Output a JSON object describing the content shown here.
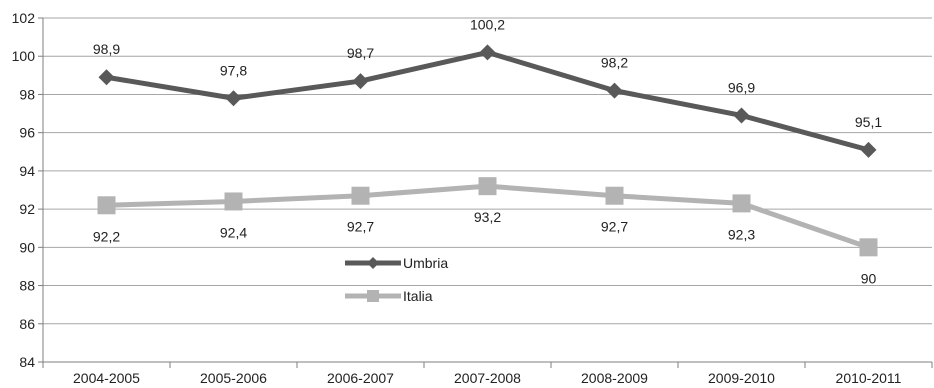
{
  "chart_data": {
    "type": "line",
    "categories": [
      "2004-2005",
      "2005-2006",
      "2006-2007",
      "2007-2008",
      "2008-2009",
      "2009-2010",
      "2010-2011"
    ],
    "series": [
      {
        "name": "Umbria",
        "values": [
          98.9,
          97.8,
          98.7,
          100.2,
          98.2,
          96.9,
          95.1
        ],
        "labels": [
          "98,9",
          "97,8",
          "98,7",
          "100,2",
          "98,2",
          "96,9",
          "95,1"
        ],
        "color": "#595959",
        "marker": "diamond"
      },
      {
        "name": "Italia",
        "values": [
          92.2,
          92.4,
          92.7,
          93.2,
          92.7,
          92.3,
          90
        ],
        "labels": [
          "92,2",
          "92,4",
          "92,7",
          "93,2",
          "92,7",
          "92,3",
          "90"
        ],
        "color": "#b3b3b3",
        "marker": "square"
      }
    ],
    "ylim": [
      84,
      102
    ],
    "yticks": [
      84,
      86,
      88,
      90,
      92,
      94,
      96,
      98,
      100,
      102
    ],
    "grid": true,
    "legend_position": "center-left, inside plot"
  }
}
